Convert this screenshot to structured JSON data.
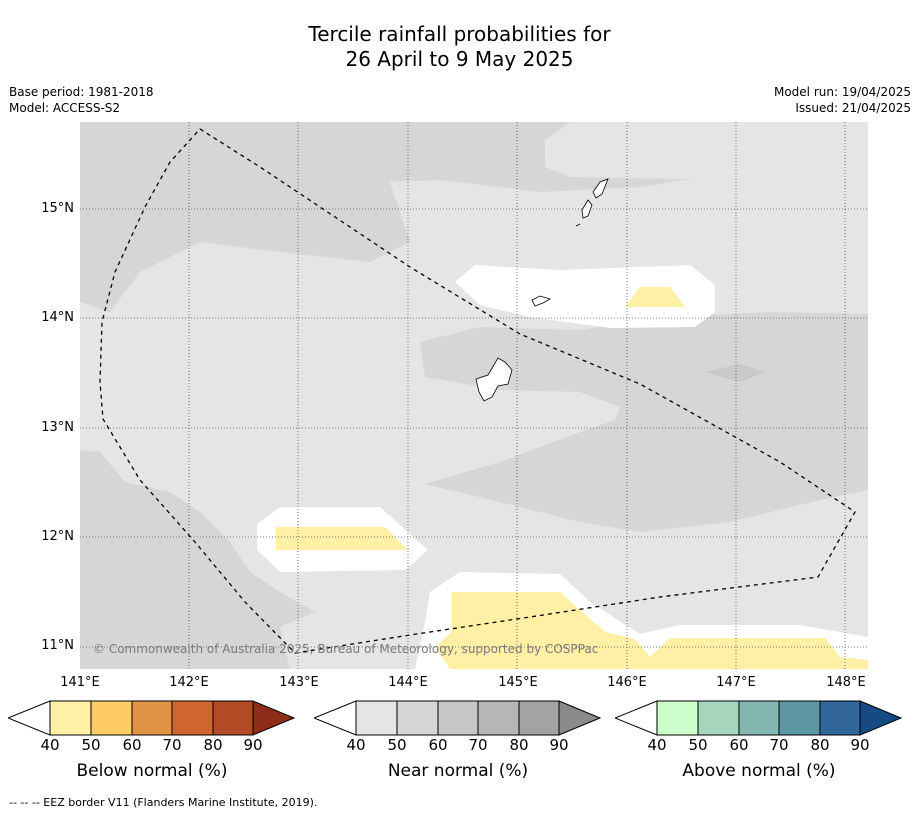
{
  "title_line1": "Tercile rainfall probabilities for",
  "title_line2": "26 April to 9 May 2025",
  "base_period": "Base period: 1981-2018",
  "model": "Model: ACCESS-S2",
  "model_run": "Model run: 19/04/2025",
  "issued": "Issued: 21/04/2025",
  "copyright": "© Commonwealth of Australia 2025, Bureau of Meteorology, supported by COSPPac",
  "footnote": "--  --  -- EEZ border V11 (Flanders Marine Institute, 2019).",
  "lat_labels": [
    "15°N",
    "14°N",
    "13°N",
    "12°N",
    "11°N"
  ],
  "lon_labels": [
    "141°E",
    "142°E",
    "143°E",
    "144°E",
    "145°E",
    "146°E",
    "147°E",
    "148°E"
  ],
  "colorbars": [
    {
      "title": "Below normal (%)",
      "ticks": [
        "40",
        "50",
        "60",
        "70",
        "80",
        "90"
      ],
      "colors": [
        "#fff0a5",
        "#fecc65",
        "#e09546",
        "#cf6531",
        "#b34a26",
        "#8e2d17"
      ]
    },
    {
      "title": "Near normal (%)",
      "ticks": [
        "40",
        "50",
        "60",
        "70",
        "80",
        "90"
      ],
      "colors": [
        "#e5e5e5",
        "#d6d6d6",
        "#c6c6c6",
        "#b6b6b6",
        "#a3a3a3",
        "#8a8a8a"
      ]
    },
    {
      "title": "Above normal (%)",
      "ticks": [
        "40",
        "50",
        "60",
        "70",
        "80",
        "90"
      ],
      "colors": [
        "#cbfecb",
        "#a5d5bd",
        "#84b7b2",
        "#5c95a3",
        "#336699",
        "#154a85"
      ]
    }
  ]
}
